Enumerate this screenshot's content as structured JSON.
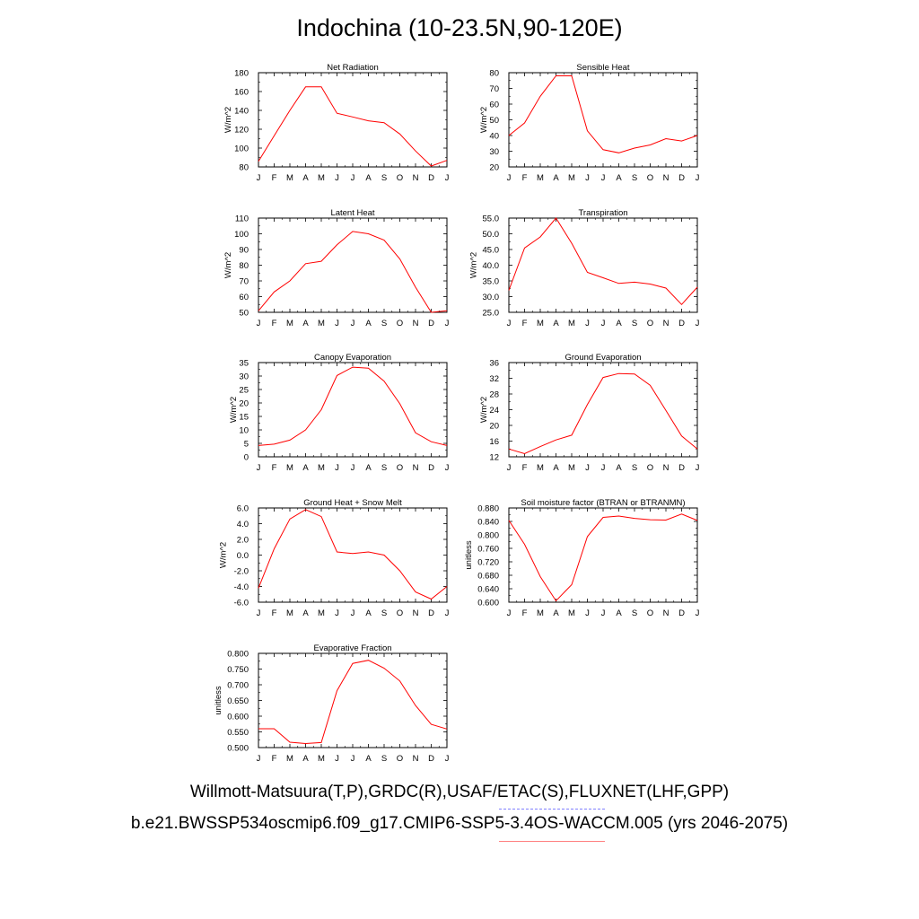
{
  "page": {
    "title": "Indochina (10-23.5N,90-120E)",
    "legend_obs": "Willmott-Matsuura(T,P),GRDC(R),USAF/ETAC(S),FLUXNET(LHF,GPP)",
    "legend_model": "b.e21.BWSSP534oscmip6.f09_g17.CMIP6-SSP5-3.4OS-WACCM.005 (yrs 2046-2075)",
    "colors": {
      "model": "#ff0000",
      "obs_dash": "#8080ff",
      "model_key": "#ff8080"
    }
  },
  "chart_data": [
    {
      "type": "line",
      "title": "Net Radiation",
      "ylabel": "W/m^2",
      "categories": [
        "J",
        "F",
        "M",
        "A",
        "M",
        "J",
        "J",
        "A",
        "S",
        "O",
        "N",
        "D",
        "J"
      ],
      "ylim": [
        80,
        180
      ],
      "yticks": [
        "80",
        "100",
        "120",
        "140",
        "160",
        "180"
      ],
      "ytick_values": [
        80,
        100,
        120,
        140,
        160,
        180
      ],
      "series": [
        {
          "name": "model",
          "values": [
            86,
            113,
            140,
            165,
            165,
            137,
            133,
            129,
            127,
            115,
            97,
            81,
            87
          ]
        }
      ]
    },
    {
      "type": "line",
      "title": "Sensible Heat",
      "ylabel": "W/m^2",
      "categories": [
        "J",
        "F",
        "M",
        "A",
        "M",
        "J",
        "J",
        "A",
        "S",
        "O",
        "N",
        "D",
        "J"
      ],
      "ylim": [
        20,
        80
      ],
      "yticks": [
        "20",
        "30",
        "40",
        "50",
        "60",
        "70",
        "80"
      ],
      "ytick_values": [
        20,
        30,
        40,
        50,
        60,
        70,
        80
      ],
      "series": [
        {
          "name": "model",
          "values": [
            40,
            48,
            65,
            78,
            78,
            43,
            31,
            29,
            32,
            34,
            38,
            36.5,
            40
          ]
        }
      ]
    },
    {
      "type": "line",
      "title": "Latent Heat",
      "ylabel": "W/m^2",
      "categories": [
        "J",
        "F",
        "M",
        "A",
        "M",
        "J",
        "J",
        "A",
        "S",
        "O",
        "N",
        "D",
        "J"
      ],
      "ylim": [
        50,
        110
      ],
      "yticks": [
        "50",
        "60",
        "70",
        "80",
        "90",
        "100",
        "110"
      ],
      "ytick_values": [
        50,
        60,
        70,
        80,
        90,
        100,
        110
      ],
      "series": [
        {
          "name": "model",
          "values": [
            51,
            63,
            70,
            81,
            82.5,
            93,
            101.5,
            100,
            96,
            84,
            66,
            50,
            51
          ]
        }
      ]
    },
    {
      "type": "line",
      "title": "Transpiration",
      "ylabel": "W/m^2",
      "categories": [
        "J",
        "F",
        "M",
        "A",
        "M",
        "J",
        "J",
        "A",
        "S",
        "O",
        "N",
        "D",
        "J"
      ],
      "ylim": [
        25,
        55
      ],
      "yticks": [
        "25.0",
        "30.0",
        "35.0",
        "40.0",
        "45.0",
        "50.0",
        "55.0"
      ],
      "ytick_values": [
        25,
        30,
        35,
        40,
        45,
        50,
        55
      ],
      "series": [
        {
          "name": "model",
          "values": [
            32,
            45.5,
            49,
            55,
            47,
            37.7,
            36,
            34.2,
            34.6,
            34,
            32.7,
            27.5,
            33
          ]
        }
      ]
    },
    {
      "type": "line",
      "title": "Canopy Evaporation",
      "ylabel": "W/m^2",
      "categories": [
        "J",
        "F",
        "M",
        "A",
        "M",
        "J",
        "J",
        "A",
        "S",
        "O",
        "N",
        "D",
        "J"
      ],
      "ylim": [
        0,
        35
      ],
      "yticks": [
        "0",
        "5",
        "10",
        "15",
        "20",
        "25",
        "30",
        "35"
      ],
      "ytick_values": [
        0,
        5,
        10,
        15,
        20,
        25,
        30,
        35
      ],
      "series": [
        {
          "name": "model",
          "values": [
            4.2,
            4.7,
            6.2,
            10,
            17.5,
            30.2,
            33.3,
            32.9,
            28.1,
            19.7,
            8.9,
            5.6,
            4.2
          ]
        }
      ]
    },
    {
      "type": "line",
      "title": "Ground Evaporation",
      "ylabel": "W/m^2",
      "categories": [
        "J",
        "F",
        "M",
        "A",
        "M",
        "J",
        "J",
        "A",
        "S",
        "O",
        "N",
        "D",
        "J"
      ],
      "ylim": [
        12,
        36
      ],
      "yticks": [
        "12",
        "16",
        "20",
        "24",
        "28",
        "32",
        "36"
      ],
      "ytick_values": [
        12,
        16,
        20,
        24,
        28,
        32,
        36
      ],
      "series": [
        {
          "name": "model",
          "values": [
            14,
            12.8,
            14.6,
            16.3,
            17.5,
            25.3,
            32.2,
            33.2,
            33.1,
            30.2,
            23.8,
            17.3,
            14
          ]
        }
      ]
    },
    {
      "type": "line",
      "title": "Ground Heat + Snow Melt",
      "ylabel": "W/m^2",
      "categories": [
        "J",
        "F",
        "M",
        "A",
        "M",
        "J",
        "J",
        "A",
        "S",
        "O",
        "N",
        "D",
        "J"
      ],
      "ylim": [
        -6,
        6
      ],
      "yticks": [
        "-6.0",
        "-4.0",
        "-2.0",
        "0.0",
        "2.0",
        "4.0",
        "6.0"
      ],
      "ytick_values": [
        -6,
        -4,
        -2,
        0,
        2,
        4,
        6
      ],
      "series": [
        {
          "name": "model",
          "values": [
            -4.2,
            0.8,
            4.6,
            5.8,
            4.9,
            0.4,
            0.2,
            0.4,
            0.0,
            -2.0,
            -4.7,
            -5.6,
            -4.0
          ]
        }
      ]
    },
    {
      "type": "line",
      "title": "Soil moisture factor (BTRAN or BTRANMN)",
      "ylabel": "unitless",
      "categories": [
        "J",
        "F",
        "M",
        "A",
        "M",
        "J",
        "J",
        "A",
        "S",
        "O",
        "N",
        "D",
        "J"
      ],
      "ylim": [
        0.6,
        0.88
      ],
      "yticks": [
        "0.600",
        "0.640",
        "0.680",
        "0.720",
        "0.760",
        "0.800",
        "0.840",
        "0.880"
      ],
      "ytick_values": [
        0.6,
        0.64,
        0.68,
        0.72,
        0.76,
        0.8,
        0.84,
        0.88
      ],
      "series": [
        {
          "name": "model",
          "values": [
            0.843,
            0.772,
            0.676,
            0.604,
            0.652,
            0.795,
            0.852,
            0.856,
            0.849,
            0.845,
            0.844,
            0.862,
            0.843
          ]
        }
      ]
    },
    {
      "type": "line",
      "title": "Evaporative Fraction",
      "ylabel": "unitless",
      "categories": [
        "J",
        "F",
        "M",
        "A",
        "M",
        "J",
        "J",
        "A",
        "S",
        "O",
        "N",
        "D",
        "J"
      ],
      "ylim": [
        0.5,
        0.8
      ],
      "yticks": [
        "0.500",
        "0.550",
        "0.600",
        "0.650",
        "0.700",
        "0.750",
        "0.800"
      ],
      "ytick_values": [
        0.5,
        0.55,
        0.6,
        0.65,
        0.7,
        0.75,
        0.8
      ],
      "series": [
        {
          "name": "model",
          "values": [
            0.56,
            0.56,
            0.517,
            0.513,
            0.516,
            0.681,
            0.768,
            0.778,
            0.753,
            0.712,
            0.634,
            0.574,
            0.559
          ]
        }
      ]
    }
  ]
}
